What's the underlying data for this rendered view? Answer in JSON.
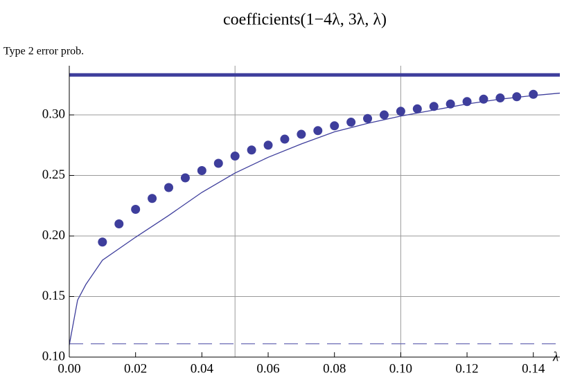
{
  "chart_data": {
    "type": "scatter",
    "title": "coefficients(1−4λ, 3λ, λ)",
    "y_label": "Type 2 error prob.",
    "x_label": "λ",
    "xlim": [
      0,
      0.148
    ],
    "ylim": [
      0.1,
      0.3406
    ],
    "xticks": [
      {
        "value": 0,
        "label": "0.00"
      },
      {
        "value": 0.02,
        "label": "0.02"
      },
      {
        "value": 0.04,
        "label": "0.04"
      },
      {
        "value": 0.06,
        "label": "0.06"
      },
      {
        "value": 0.08,
        "label": "0.08"
      },
      {
        "value": 0.1,
        "label": "0.10"
      },
      {
        "value": 0.12,
        "label": "0.12"
      },
      {
        "value": 0.14,
        "label": "0.14"
      }
    ],
    "yticks": [
      {
        "value": 0.1,
        "label": "0.10"
      },
      {
        "value": 0.15,
        "label": "0.15"
      },
      {
        "value": 0.2,
        "label": "0.20"
      },
      {
        "value": 0.25,
        "label": "0.25"
      },
      {
        "value": 0.3,
        "label": "0.30"
      }
    ],
    "xgrid": [
      0.05,
      0.1
    ],
    "ygrid": [
      0.15,
      0.2,
      0.25,
      0.3
    ],
    "series": [
      {
        "type": "scatter",
        "color": "#3e3e9c",
        "x": [
          0.01,
          0.015,
          0.02,
          0.025,
          0.03,
          0.035,
          0.04,
          0.045,
          0.05,
          0.055,
          0.06,
          0.065,
          0.07,
          0.075,
          0.08,
          0.085,
          0.09,
          0.095,
          0.1,
          0.105,
          0.11,
          0.115,
          0.12,
          0.125,
          0.13,
          0.135,
          0.14
        ],
        "values": [
          0.195,
          0.21,
          0.222,
          0.231,
          0.24,
          0.248,
          0.254,
          0.26,
          0.266,
          0.271,
          0.275,
          0.28,
          0.284,
          0.287,
          0.291,
          0.294,
          0.297,
          0.3,
          0.303,
          0.305,
          0.307,
          0.309,
          0.311,
          0.313,
          0.314,
          0.315,
          0.317
        ]
      },
      {
        "type": "line",
        "color": "#3e3e9c",
        "x": [
          0,
          0.0025,
          0.005,
          0.01,
          0.02,
          0.03,
          0.04,
          0.05,
          0.06,
          0.07,
          0.08,
          0.09,
          0.1,
          0.11,
          0.12,
          0.13,
          0.14,
          0.148
        ],
        "values": [
          0.11,
          0.147,
          0.16,
          0.18,
          0.199,
          0.217,
          0.236,
          0.252,
          0.265,
          0.276,
          0.286,
          0.293,
          0.299,
          0.304,
          0.309,
          0.313,
          0.316,
          0.318
        ]
      }
    ],
    "reference_lines": [
      {
        "value": 0.333,
        "style": "solid",
        "color": "#3e3e9c"
      },
      {
        "value": 0.111,
        "style": "dashed",
        "color": "#6a6ab4"
      }
    ]
  }
}
